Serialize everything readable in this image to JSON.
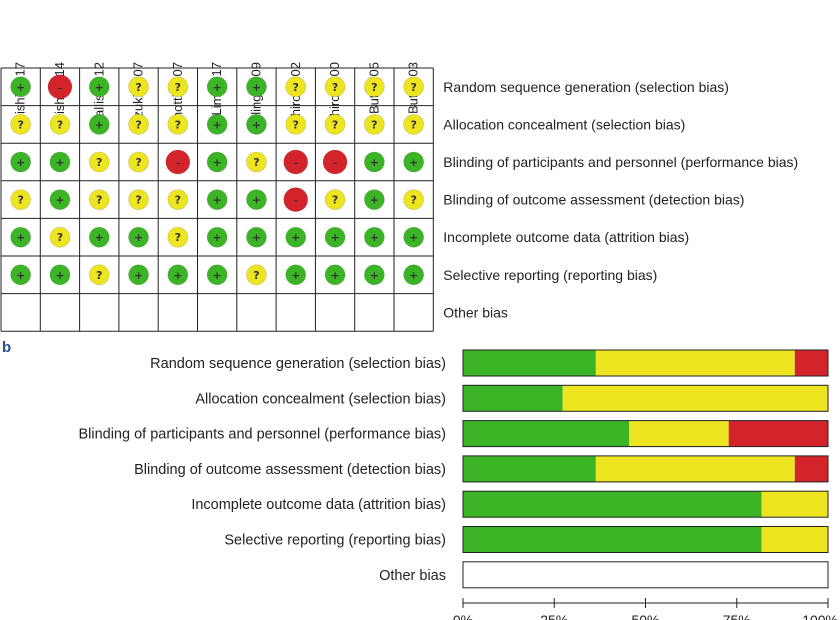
{
  "colors": {
    "low": "#3bb526",
    "unclear": "#ede51f",
    "high": "#d4242b",
    "frame": "#222222"
  },
  "symbols": {
    "low": "+",
    "unclear": "?",
    "high": "–"
  },
  "panel_b_label": "b",
  "chart_data": [
    {
      "type": "table",
      "studies": [
        "ishi 2017",
        "ishi 2014",
        "allis 2012",
        "zuki 2007",
        "notti 2007",
        "Lim 2017",
        "ling 2009",
        "hiro 2002",
        "hiro 2000",
        "But 2005",
        "But 2003"
      ],
      "domains": [
        "Random sequence generation (selection bias)",
        "Allocation concealment (selection bias)",
        "Blinding of participants and personnel (performance bias)",
        "Blinding of outcome assessment (detection bias)",
        "Incomplete outcome data (attrition bias)",
        "Selective reporting (reporting bias)",
        "Other bias"
      ],
      "ratings": [
        [
          "low",
          "high",
          "low",
          "unclear",
          "unclear",
          "low",
          "low",
          "unclear",
          "unclear",
          "unclear",
          "unclear"
        ],
        [
          "unclear",
          "unclear",
          "low",
          "unclear",
          "unclear",
          "low",
          "low",
          "unclear",
          "unclear",
          "unclear",
          "unclear"
        ],
        [
          "low",
          "low",
          "unclear",
          "unclear",
          "high",
          "low",
          "unclear",
          "high",
          "high",
          "low",
          "low"
        ],
        [
          "unclear",
          "low",
          "unclear",
          "unclear",
          "unclear",
          "low",
          "low",
          "high",
          "unclear",
          "low",
          "unclear"
        ],
        [
          "low",
          "unclear",
          "low",
          "low",
          "unclear",
          "low",
          "low",
          "low",
          "low",
          "low",
          "low"
        ],
        [
          "low",
          "low",
          "unclear",
          "low",
          "low",
          "low",
          "unclear",
          "low",
          "low",
          "low",
          "low"
        ],
        [
          null,
          null,
          null,
          null,
          null,
          null,
          null,
          null,
          null,
          null,
          null
        ]
      ]
    },
    {
      "type": "bar",
      "stacked": true,
      "orientation": "horizontal",
      "categories": [
        "Random sequence generation (selection bias)",
        "Allocation concealment (selection bias)",
        "Blinding of participants and personnel (performance bias)",
        "Blinding of outcome assessment (detection bias)",
        "Incomplete outcome data (attrition bias)",
        "Selective reporting (reporting bias)",
        "Other bias"
      ],
      "series": [
        {
          "key": "low",
          "values": [
            36.4,
            27.3,
            45.5,
            36.4,
            81.8,
            81.8,
            0
          ]
        },
        {
          "key": "unclear",
          "values": [
            54.5,
            72.7,
            27.3,
            54.5,
            18.2,
            18.2,
            0
          ]
        },
        {
          "key": "high",
          "values": [
            9.1,
            0,
            27.3,
            9.1,
            0,
            0,
            0
          ]
        }
      ],
      "xlim": [
        0,
        100
      ],
      "xticks": [
        0,
        25,
        50,
        75,
        100
      ],
      "xtick_labels": [
        "0%",
        "25%",
        "50%",
        "75%",
        "100%"
      ]
    }
  ]
}
